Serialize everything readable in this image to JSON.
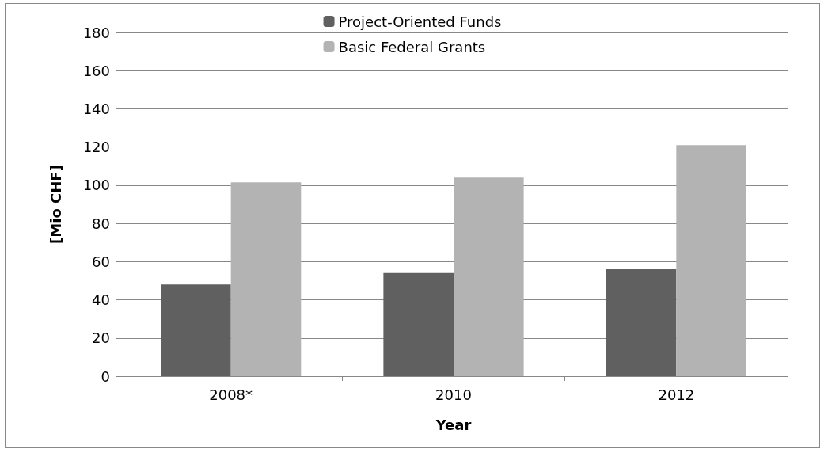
{
  "chart_data": {
    "type": "bar",
    "xlabel": "Year",
    "ylabel": "[Mio CHF]",
    "categories": [
      "2008*",
      "2010",
      "2012"
    ],
    "series": [
      {
        "name": "Project-Oriented Funds",
        "color": "#606060",
        "values": [
          48,
          54,
          56
        ]
      },
      {
        "name": "Basic Federal Grants",
        "color": "#b3b3b3",
        "values": [
          101.5,
          104,
          121
        ]
      }
    ],
    "ylim": [
      0,
      180
    ],
    "yticks": [
      0,
      20,
      40,
      60,
      80,
      100,
      120,
      140,
      160,
      180
    ],
    "grid": "y",
    "legend": "top"
  }
}
